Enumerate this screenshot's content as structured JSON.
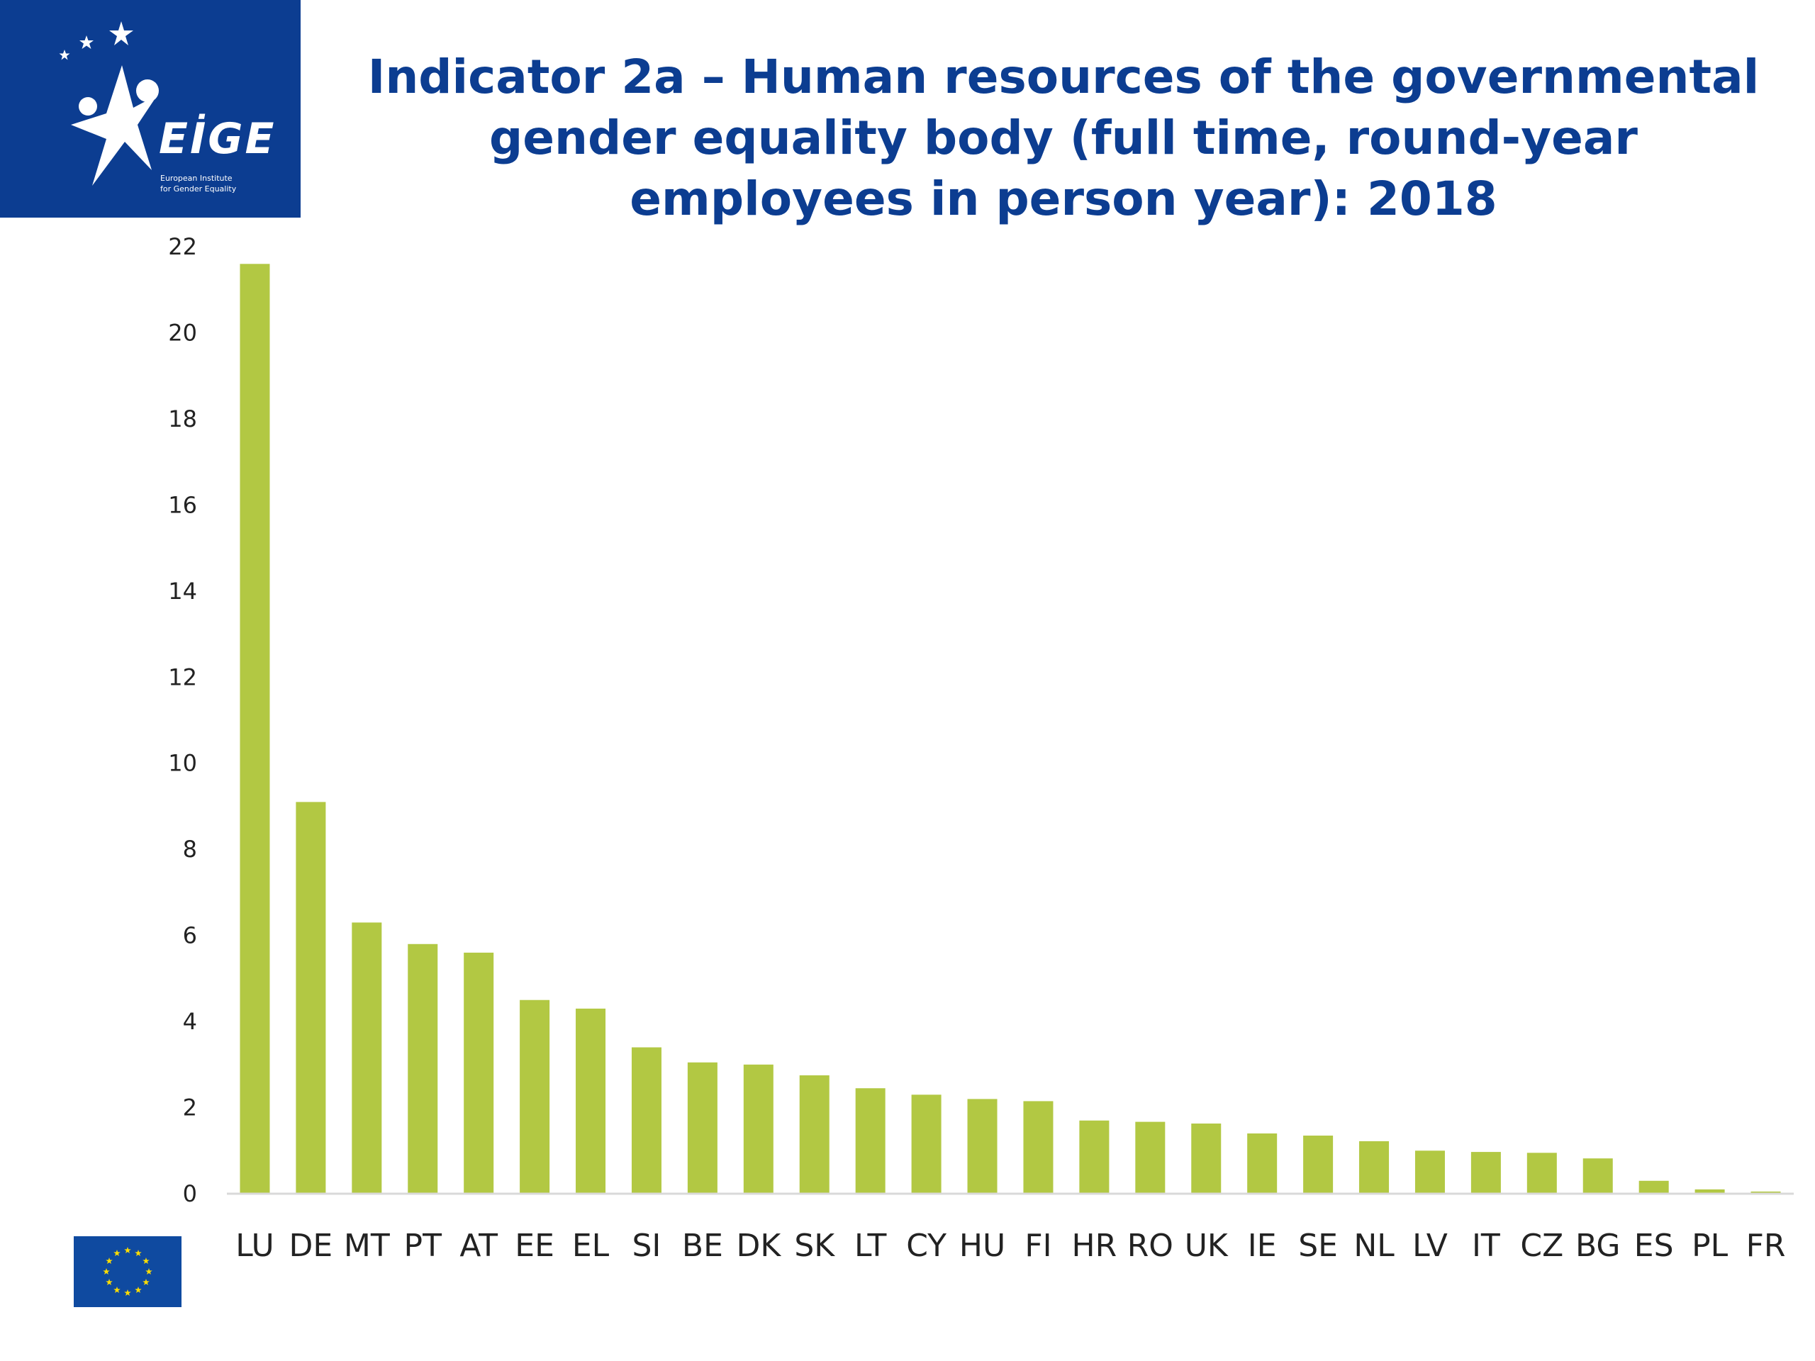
{
  "logo": {
    "word": "EİGE",
    "subtitle_line1": "European Institute",
    "subtitle_line2": "for Gender Equality"
  },
  "colors": {
    "brand_blue": "#0c3d91",
    "bar_green": "#b2c843",
    "axis_line": "#d9d9d9",
    "flag_blue": "#0f4aa0",
    "flag_star": "#ffdd00"
  },
  "icons": {
    "logo": "eige-star-figure-icon",
    "flag": "eu-flag-icon"
  },
  "chart_data": {
    "type": "bar",
    "title": "Indicator 2a – Human resources of the governmental gender equality body (full time, round-year employees in person year): 2018",
    "xlabel": "",
    "ylabel": "",
    "ylim": [
      0,
      22
    ],
    "yticks": [
      0,
      2,
      4,
      6,
      8,
      10,
      12,
      14,
      16,
      18,
      20,
      22
    ],
    "grid": false,
    "legend": "none",
    "categories": [
      "LU",
      "DE",
      "MT",
      "PT",
      "AT",
      "EE",
      "EL",
      "SI",
      "BE",
      "DK",
      "SK",
      "LT",
      "CY",
      "HU",
      "FI",
      "HR",
      "RO",
      "UK",
      "IE",
      "SE",
      "NL",
      "LV",
      "IT",
      "CZ",
      "BG",
      "ES",
      "PL",
      "FR"
    ],
    "values": [
      21.6,
      9.1,
      6.3,
      5.8,
      5.6,
      4.5,
      4.3,
      3.4,
      3.05,
      3.0,
      2.75,
      2.45,
      2.3,
      2.2,
      2.15,
      1.7,
      1.67,
      1.63,
      1.4,
      1.35,
      1.22,
      1.0,
      0.97,
      0.95,
      0.82,
      0.3,
      0.1,
      0.05
    ]
  }
}
